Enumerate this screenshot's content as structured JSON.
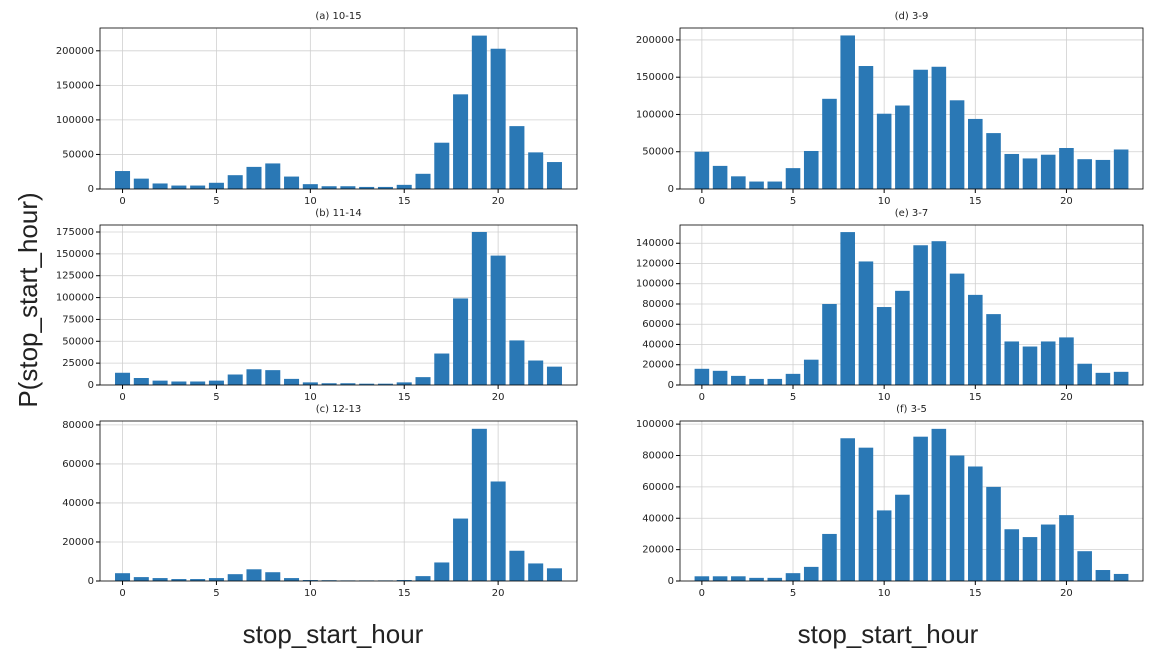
{
  "ylabel": "P(stop_start_hour)",
  "xlabels": [
    "stop_start_hour",
    "stop_start_hour"
  ],
  "chart_data": [
    {
      "type": "bar",
      "title": "(a) 10-15",
      "color": "#2a78b5",
      "grid": true,
      "x": [
        0,
        1,
        2,
        3,
        4,
        5,
        6,
        7,
        8,
        9,
        10,
        11,
        12,
        13,
        14,
        15,
        16,
        17,
        18,
        19,
        20,
        21,
        22,
        23
      ],
      "values": [
        26000,
        15000,
        8000,
        5000,
        5000,
        9000,
        20000,
        32000,
        37000,
        18000,
        7000,
        4000,
        4000,
        3000,
        3000,
        6000,
        22000,
        67000,
        137000,
        222000,
        203000,
        91000,
        53000,
        39000
      ],
      "xlim": [
        -1.2,
        24.2
      ],
      "xticks": [
        0,
        5,
        10,
        15,
        20
      ],
      "ylim": [
        0,
        233000
      ],
      "yticks": [
        0,
        50000,
        100000,
        150000,
        200000
      ]
    },
    {
      "type": "bar",
      "title": "(b) 11-14",
      "color": "#2a78b5",
      "grid": true,
      "x": [
        0,
        1,
        2,
        3,
        4,
        5,
        6,
        7,
        8,
        9,
        10,
        11,
        12,
        13,
        14,
        15,
        16,
        17,
        18,
        19,
        20,
        21,
        22,
        23
      ],
      "values": [
        14000,
        8000,
        5000,
        4000,
        4000,
        5000,
        12000,
        18000,
        17000,
        7000,
        3000,
        2000,
        2000,
        1500,
        1500,
        3000,
        9000,
        36000,
        99000,
        175000,
        148000,
        51000,
        28000,
        21000
      ],
      "xlim": [
        -1.2,
        24.2
      ],
      "xticks": [
        0,
        5,
        10,
        15,
        20
      ],
      "ylim": [
        0,
        183000
      ],
      "yticks": [
        0,
        25000,
        50000,
        75000,
        100000,
        125000,
        150000,
        175000
      ]
    },
    {
      "type": "bar",
      "title": "(c) 12-13",
      "color": "#2a78b5",
      "grid": true,
      "x": [
        0,
        1,
        2,
        3,
        4,
        5,
        6,
        7,
        8,
        9,
        10,
        11,
        12,
        13,
        14,
        15,
        16,
        17,
        18,
        19,
        20,
        21,
        22,
        23
      ],
      "values": [
        4000,
        2000,
        1500,
        1000,
        1000,
        1500,
        3500,
        6000,
        4500,
        1500,
        500,
        400,
        300,
        300,
        300,
        500,
        2500,
        9500,
        32000,
        78000,
        51000,
        15500,
        9000,
        6500
      ],
      "xlim": [
        -1.2,
        24.2
      ],
      "xticks": [
        0,
        5,
        10,
        15,
        20
      ],
      "ylim": [
        0,
        82000
      ],
      "yticks": [
        0,
        20000,
        40000,
        60000,
        80000
      ]
    },
    {
      "type": "bar",
      "title": "(d) 3-9",
      "color": "#2a78b5",
      "grid": true,
      "x": [
        0,
        1,
        2,
        3,
        4,
        5,
        6,
        7,
        8,
        9,
        10,
        11,
        12,
        13,
        14,
        15,
        16,
        17,
        18,
        19,
        20,
        21,
        22,
        23
      ],
      "values": [
        50000,
        31000,
        17000,
        10000,
        10000,
        28000,
        51000,
        121000,
        206000,
        165000,
        101000,
        112000,
        160000,
        164000,
        119000,
        94000,
        75000,
        47000,
        41000,
        46000,
        55000,
        40000,
        39000,
        53000
      ],
      "xlim": [
        -1.2,
        24.2
      ],
      "xticks": [
        0,
        5,
        10,
        15,
        20
      ],
      "ylim": [
        0,
        216000
      ],
      "yticks": [
        0,
        50000,
        100000,
        150000,
        200000
      ]
    },
    {
      "type": "bar",
      "title": "(e) 3-7",
      "color": "#2a78b5",
      "grid": true,
      "x": [
        0,
        1,
        2,
        3,
        4,
        5,
        6,
        7,
        8,
        9,
        10,
        11,
        12,
        13,
        14,
        15,
        16,
        17,
        18,
        19,
        20,
        21,
        22,
        23
      ],
      "values": [
        16000,
        14000,
        9000,
        6000,
        6000,
        11000,
        25000,
        80000,
        151000,
        122000,
        77000,
        93000,
        138000,
        142000,
        110000,
        89000,
        70000,
        43000,
        38000,
        43000,
        47000,
        21000,
        12000,
        13000
      ],
      "xlim": [
        -1.2,
        24.2
      ],
      "xticks": [
        0,
        5,
        10,
        15,
        20
      ],
      "ylim": [
        0,
        158000
      ],
      "yticks": [
        0,
        20000,
        40000,
        60000,
        80000,
        100000,
        120000,
        140000
      ]
    },
    {
      "type": "bar",
      "title": "(f) 3-5",
      "color": "#2a78b5",
      "grid": true,
      "x": [
        0,
        1,
        2,
        3,
        4,
        5,
        6,
        7,
        8,
        9,
        10,
        11,
        12,
        13,
        14,
        15,
        16,
        17,
        18,
        19,
        20,
        21,
        22,
        23
      ],
      "values": [
        3000,
        3000,
        3000,
        2000,
        2000,
        5000,
        9000,
        30000,
        91000,
        85000,
        45000,
        55000,
        92000,
        97000,
        80000,
        73000,
        60000,
        33000,
        28000,
        36000,
        42000,
        19000,
        7000,
        4500
      ],
      "xlim": [
        -1.2,
        24.2
      ],
      "xticks": [
        0,
        5,
        10,
        15,
        20
      ],
      "ylim": [
        0,
        102000
      ],
      "yticks": [
        0,
        20000,
        40000,
        60000,
        80000,
        100000
      ]
    }
  ]
}
